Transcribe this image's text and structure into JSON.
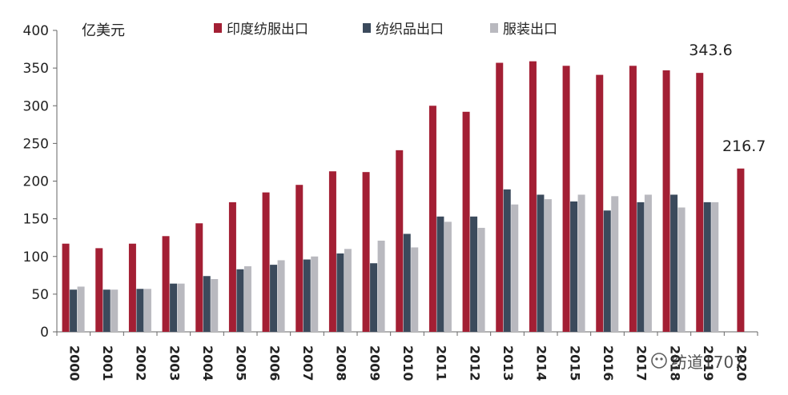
{
  "chart_data": {
    "type": "bar",
    "unit_label": "亿美元",
    "ylim": [
      0,
      400
    ],
    "yticks": [
      0,
      50,
      100,
      150,
      200,
      250,
      300,
      350,
      400
    ],
    "categories": [
      "2000",
      "2001",
      "2002",
      "2003",
      "2004",
      "2005",
      "2006",
      "2007",
      "2008",
      "2009",
      "2010",
      "2011",
      "2012",
      "2013",
      "2014",
      "2015",
      "2016",
      "2017",
      "2018",
      "2019",
      "2020"
    ],
    "series": [
      {
        "name": "印度纺服出口",
        "color": "#a31f34",
        "values": [
          117,
          111,
          117,
          127,
          144,
          172,
          185,
          195,
          213,
          212,
          241,
          300,
          292,
          357,
          359,
          353,
          341,
          353,
          347,
          343.6,
          216.7
        ]
      },
      {
        "name": "纺织品出口",
        "color": "#3b4a5c",
        "values": [
          56,
          56,
          57,
          64,
          74,
          83,
          89,
          96,
          104,
          91,
          130,
          153,
          153,
          189,
          182,
          173,
          161,
          172,
          182,
          172,
          null
        ]
      },
      {
        "name": "服装出口",
        "color": "#b9b9bf",
        "values": [
          60,
          56,
          57,
          64,
          70,
          87,
          95,
          100,
          110,
          121,
          112,
          146,
          138,
          169,
          176,
          182,
          180,
          182,
          165,
          172,
          null
        ]
      }
    ],
    "annotations": [
      {
        "category": "2019",
        "series": 0,
        "text": "343.6"
      },
      {
        "category": "2020",
        "series": 0,
        "text": "216.7"
      }
    ],
    "grid": false,
    "legend_position": "top"
  },
  "watermark_text": "纺道1707"
}
